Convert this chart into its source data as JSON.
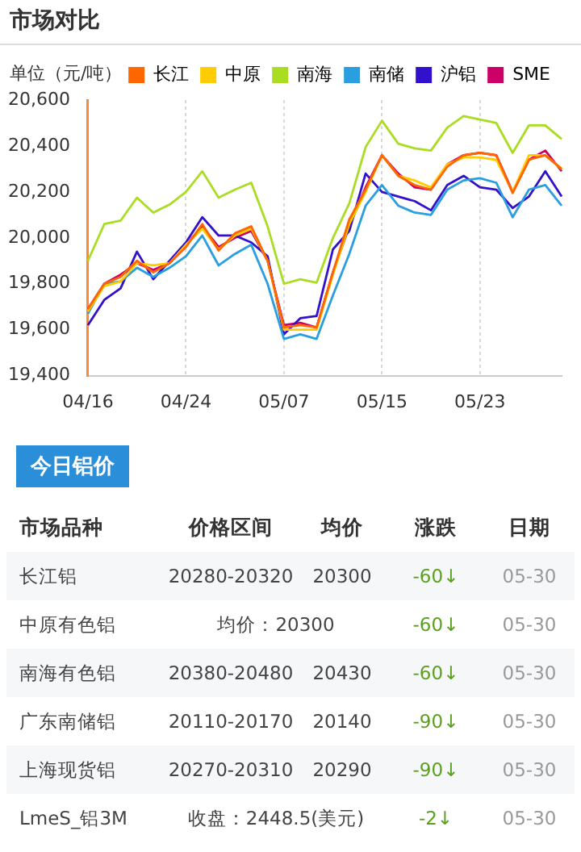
{
  "chart_data": [
    {
      "type": "line",
      "title": "市场对比",
      "ylabel": "单位（元/吨）",
      "categories": [
        "04/16",
        null,
        null,
        null,
        null,
        null,
        "04/24",
        null,
        null,
        null,
        null,
        null,
        "05/07",
        null,
        null,
        null,
        null,
        null,
        "05/15",
        null,
        null,
        null,
        null,
        null,
        "05/23",
        null,
        null,
        null,
        null,
        null
      ],
      "series": [
        {
          "name": "长江",
          "color": "#ff6600",
          "values": [
            19690,
            19800,
            19830,
            19900,
            19850,
            19890,
            19960,
            20060,
            19945,
            20020,
            20050,
            19900,
            19610,
            19620,
            19610,
            19850,
            20080,
            20210,
            20360,
            20270,
            20230,
            20210,
            20310,
            20360,
            20370,
            20360,
            20195,
            20340,
            20360,
            20300
          ]
        },
        {
          "name": "中原",
          "color": "#ffcc00",
          "values": [
            19680,
            19790,
            19810,
            19890,
            19880,
            19890,
            19970,
            20040,
            19950,
            20010,
            20040,
            19900,
            19600,
            19600,
            19600,
            19840,
            20060,
            20200,
            20360,
            20270,
            20250,
            20220,
            20320,
            20350,
            20350,
            20340,
            20200,
            20360,
            20360,
            20300
          ]
        },
        {
          "name": "南海",
          "color": "#aadd22",
          "values": [
            19900,
            20060,
            20075,
            20175,
            20110,
            20145,
            20200,
            20290,
            20175,
            20210,
            20240,
            20050,
            19800,
            19820,
            19805,
            20000,
            20150,
            20395,
            20510,
            20410,
            20390,
            20380,
            20480,
            20530,
            20515,
            20500,
            20370,
            20490,
            20490,
            20430
          ]
        },
        {
          "name": "南储",
          "color": "#2a9fe0",
          "values": [
            19670,
            19800,
            19810,
            19870,
            19830,
            19870,
            19920,
            20010,
            19880,
            19930,
            19970,
            19800,
            19560,
            19580,
            19560,
            19750,
            19930,
            20140,
            20230,
            20140,
            20110,
            20100,
            20210,
            20250,
            20260,
            20240,
            20090,
            20210,
            20230,
            20140
          ]
        },
        {
          "name": "沪铝",
          "color": "#3311cc",
          "values": [
            19620,
            19730,
            19780,
            19940,
            19820,
            19900,
            19980,
            20090,
            20010,
            20010,
            19980,
            19920,
            19580,
            19650,
            19660,
            19950,
            20030,
            20280,
            20200,
            20180,
            20160,
            20120,
            20230,
            20270,
            20220,
            20210,
            20130,
            20180,
            20290,
            20180
          ]
        },
        {
          "name": "SME",
          "color": "#cc0066",
          "values": [
            19690,
            19800,
            19840,
            19890,
            19860,
            19890,
            19970,
            20050,
            19960,
            20000,
            20030,
            19900,
            19620,
            19630,
            19610,
            19850,
            20050,
            20220,
            20360,
            20280,
            20220,
            20210,
            20320,
            20360,
            20370,
            20360,
            20200,
            20340,
            20380,
            20290
          ]
        }
      ],
      "ylim": [
        19400,
        20600
      ],
      "yticks": [
        {
          "value": 19400,
          "label": "19,400"
        },
        {
          "value": 19600,
          "label": "19,600"
        },
        {
          "value": 19800,
          "label": "19,800"
        },
        {
          "value": 20000,
          "label": "20,000"
        },
        {
          "value": 20200,
          "label": "20,200"
        },
        {
          "value": 20400,
          "label": "20,400"
        },
        {
          "value": 20600,
          "label": "20,600"
        }
      ],
      "grid": "x",
      "legend": "top right",
      "marker": "none",
      "line_style": "solid"
    },
    {
      "type": "other",
      "title": "今日铝价",
      "categories": [
        "市场品种",
        "价格区间",
        "均价",
        "涨跌",
        "日期"
      ],
      "y_categories": [
        "长江铝",
        "中原有色铝",
        "南海有色铝",
        "广东南储铝",
        "上海现货铝",
        "LmeS_铝3M"
      ],
      "cell_labels": [
        [
          "20280-20320",
          "20300",
          "-60↓",
          "05-30"
        ],
        [
          "均价：20300",
          "-60↓",
          "05-30"
        ],
        [
          "20380-20480",
          "20430",
          "-60↓",
          "05-30"
        ],
        [
          "20110-20170",
          "20140",
          "-90↓",
          "05-30"
        ],
        [
          "20270-20310",
          "20290",
          "-90↓",
          "05-30"
        ],
        [
          "收盘：2448.5(美元)",
          "-2↓",
          "05-30"
        ]
      ]
    }
  ]
}
